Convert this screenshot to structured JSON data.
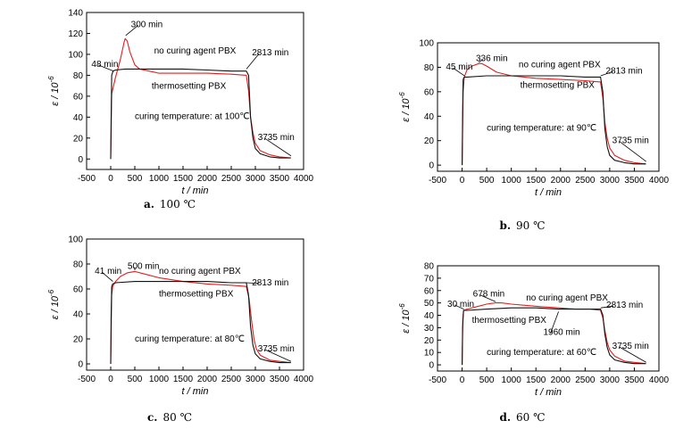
{
  "chart_data": [
    {
      "type": "line",
      "caption_letter": "a.",
      "caption_text": "100 ℃",
      "xlabel": "t / min",
      "ylabel": "ε / 10",
      "ylabel_exp": "-6",
      "xlim": [
        -500,
        4000
      ],
      "ylim": [
        -10,
        140
      ],
      "xticks": [
        -500,
        0,
        500,
        1000,
        1500,
        2000,
        2500,
        3000,
        3500,
        4000
      ],
      "yticks": [
        0,
        20,
        40,
        60,
        80,
        100,
        120,
        140
      ],
      "series": [
        {
          "key": "thermosetting",
          "color": "#e02020",
          "x": [
            0,
            20,
            48,
            100,
            200,
            280,
            300,
            340,
            400,
            500,
            600,
            800,
            1000,
            1500,
            2000,
            2500,
            2813,
            2860,
            2900,
            2950,
            3000,
            3100,
            3300,
            3500,
            3735
          ],
          "y": [
            0,
            62,
            68,
            78,
            95,
            112,
            115,
            113,
            102,
            90,
            86,
            84,
            82,
            82,
            82,
            81,
            80,
            65,
            40,
            25,
            15,
            8,
            4,
            2,
            1
          ]
        },
        {
          "key": "no-curing",
          "color": "#111111",
          "x": [
            0,
            10,
            20,
            48,
            100,
            300,
            600,
            1000,
            1500,
            2000,
            2500,
            2813,
            2860,
            2900,
            2950,
            3000,
            3100,
            3300,
            3500,
            3735
          ],
          "y": [
            0,
            40,
            80,
            84,
            85,
            86,
            86,
            86,
            86,
            85,
            84,
            84,
            80,
            40,
            20,
            10,
            5,
            2,
            1,
            1
          ]
        }
      ],
      "annotations": [
        {
          "text": "48 min",
          "x": -400,
          "y": 88,
          "ax": 60,
          "ay": 84
        },
        {
          "text": "300 min",
          "x": 420,
          "y": 126,
          "ax": 310,
          "ay": 118
        },
        {
          "text": "no curing agent PBX",
          "x": 900,
          "y": 101
        },
        {
          "text": "2813 min",
          "x": 2930,
          "y": 99,
          "ax": 2815,
          "ay": 86
        },
        {
          "text": "thermosetting PBX",
          "x": 850,
          "y": 67
        },
        {
          "text": "curing temperature: at 100℃",
          "x": 500,
          "y": 38
        },
        {
          "text": "3735 min",
          "x": 3050,
          "y": 18,
          "ax": 3740,
          "ay": 3
        }
      ]
    },
    {
      "type": "line",
      "caption_letter": "b.",
      "caption_text": "90 ℃",
      "xlabel": "t / min",
      "ylabel": "ε / 10",
      "ylabel_exp": "-6",
      "xlim": [
        -500,
        4000
      ],
      "ylim": [
        -5,
        100
      ],
      "xticks": [
        -500,
        0,
        500,
        1000,
        1500,
        2000,
        2500,
        3000,
        3500,
        4000
      ],
      "yticks": [
        0,
        20,
        40,
        60,
        80,
        100
      ],
      "series": [
        {
          "key": "thermosetting",
          "color": "#e02020",
          "x": [
            0,
            20,
            45,
            100,
            200,
            336,
            400,
            500,
            700,
            1000,
            1500,
            2000,
            2500,
            2813,
            2860,
            2900,
            2950,
            3000,
            3100,
            3300,
            3500,
            3735
          ],
          "y": [
            0,
            60,
            72,
            78,
            81,
            83,
            83,
            81,
            76,
            73,
            71,
            70,
            69,
            68,
            55,
            35,
            22,
            14,
            8,
            4,
            2,
            1
          ]
        },
        {
          "key": "no-curing",
          "color": "#111111",
          "x": [
            0,
            10,
            20,
            45,
            100,
            500,
            1000,
            1500,
            2000,
            2500,
            2813,
            2860,
            2900,
            2950,
            3000,
            3100,
            3300,
            3500,
            3735
          ],
          "y": [
            0,
            40,
            70,
            72,
            72,
            73,
            73,
            73,
            73,
            72,
            72,
            60,
            30,
            15,
            8,
            4,
            2,
            1,
            1
          ]
        }
      ],
      "annotations": [
        {
          "text": "45 min",
          "x": -330,
          "y": 78,
          "ax": 50,
          "ay": 73
        },
        {
          "text": "336 min",
          "x": 280,
          "y": 85,
          "ax": 340,
          "ay": 84
        },
        {
          "text": "no curing agent PBX",
          "x": 1150,
          "y": 80
        },
        {
          "text": "2813 min",
          "x": 2920,
          "y": 75,
          "ax": 2815,
          "ay": 73
        },
        {
          "text": "thermosetting PBX",
          "x": 1180,
          "y": 63
        },
        {
          "text": "curing temperature: at 90℃",
          "x": 500,
          "y": 28
        },
        {
          "text": "3735 min",
          "x": 3050,
          "y": 18,
          "ax": 3740,
          "ay": 3
        }
      ]
    },
    {
      "type": "line",
      "caption_letter": "c.",
      "caption_text": "80 ℃",
      "xlabel": "t / min",
      "ylabel": "ε / 10",
      "ylabel_exp": "-6",
      "xlim": [
        -500,
        4000
      ],
      "ylim": [
        -5,
        100
      ],
      "xticks": [
        -500,
        0,
        500,
        1000,
        1500,
        2000,
        2500,
        3000,
        3500,
        4000
      ],
      "yticks": [
        0,
        20,
        40,
        60,
        80,
        100
      ],
      "series": [
        {
          "key": "thermosetting",
          "color": "#e02020",
          "x": [
            0,
            20,
            41,
            100,
            200,
            350,
            500,
            700,
            1000,
            1500,
            2000,
            2500,
            2813,
            2870,
            2920,
            2970,
            3020,
            3100,
            3300,
            3500,
            3735
          ],
          "y": [
            0,
            55,
            62,
            66,
            70,
            73,
            74,
            72,
            69,
            66,
            64,
            63,
            62,
            52,
            35,
            20,
            12,
            7,
            3,
            2,
            1
          ]
        },
        {
          "key": "no-curing",
          "color": "#111111",
          "x": [
            0,
            10,
            20,
            41,
            100,
            500,
            1000,
            1500,
            2000,
            2500,
            2813,
            2860,
            2900,
            2950,
            3000,
            3100,
            3300,
            3500,
            3735
          ],
          "y": [
            0,
            40,
            62,
            64,
            65,
            66,
            66,
            66,
            66,
            65,
            65,
            55,
            30,
            15,
            8,
            4,
            2,
            1,
            1
          ]
        }
      ],
      "annotations": [
        {
          "text": "41 min",
          "x": -330,
          "y": 72,
          "ax": 45,
          "ay": 66
        },
        {
          "text": "500 min",
          "x": 350,
          "y": 76,
          "ax": 500,
          "ay": 75
        },
        {
          "text": "no curing agent PBX",
          "x": 1000,
          "y": 72
        },
        {
          "text": "2813 min",
          "x": 2930,
          "y": 63,
          "ax": 2815,
          "ay": 65
        },
        {
          "text": "thermosetting PBX",
          "x": 1000,
          "y": 54
        },
        {
          "text": "curing temperature: at 80℃",
          "x": 500,
          "y": 18
        },
        {
          "text": "3735 min",
          "x": 3050,
          "y": 10,
          "ax": 3740,
          "ay": 2
        }
      ]
    },
    {
      "type": "line",
      "caption_letter": "d.",
      "caption_text": "60 ℃",
      "xlabel": "t / min",
      "ylabel": "ε / 10",
      "ylabel_exp": "-6",
      "xlim": [
        -500,
        4000
      ],
      "ylim": [
        -5,
        80
      ],
      "xticks": [
        -500,
        0,
        500,
        1000,
        1500,
        2000,
        2500,
        3000,
        3500,
        4000
      ],
      "yticks": [
        0,
        10,
        20,
        30,
        40,
        50,
        60,
        70,
        80
      ],
      "series": [
        {
          "key": "thermosetting",
          "color": "#e02020",
          "x": [
            0,
            15,
            30,
            100,
            300,
            500,
            678,
            800,
            1000,
            1300,
            1600,
            1960,
            2300,
            2600,
            2813,
            2860,
            2900,
            2950,
            3000,
            3100,
            3300,
            3500,
            3735
          ],
          "y": [
            0,
            38,
            44,
            45,
            47,
            49,
            50,
            50,
            49,
            48,
            47,
            46,
            45,
            45,
            44,
            38,
            28,
            18,
            12,
            7,
            3,
            2,
            1
          ]
        },
        {
          "key": "no-curing",
          "color": "#111111",
          "x": [
            0,
            10,
            30,
            100,
            500,
            1000,
            1500,
            1960,
            2500,
            2813,
            2860,
            2900,
            2950,
            3000,
            3100,
            3300,
            3500,
            3735
          ],
          "y": [
            0,
            30,
            44,
            44,
            45,
            46,
            46,
            45,
            45,
            45,
            40,
            25,
            14,
            8,
            4,
            2,
            1,
            1
          ]
        }
      ],
      "annotations": [
        {
          "text": "30 min",
          "x": -300,
          "y": 47,
          "ax": 35,
          "ay": 45
        },
        {
          "text": "678 min",
          "x": 220,
          "y": 55,
          "ax": 680,
          "ay": 51
        },
        {
          "text": "no curing agent PBX",
          "x": 1300,
          "y": 52
        },
        {
          "text": "2813 min",
          "x": 2930,
          "y": 46,
          "ax": 2815,
          "ay": 46
        },
        {
          "text": "thermosetting PBX",
          "x": 200,
          "y": 34
        },
        {
          "text": "1960 min",
          "x": 1650,
          "y": 24,
          "ax": 1960,
          "ay": 43
        },
        {
          "text": "curing temperature: at 60℃",
          "x": 500,
          "y": 8
        },
        {
          "text": "3735 min",
          "x": 3050,
          "y": 13,
          "ax": 3740,
          "ay": 2
        }
      ]
    }
  ]
}
